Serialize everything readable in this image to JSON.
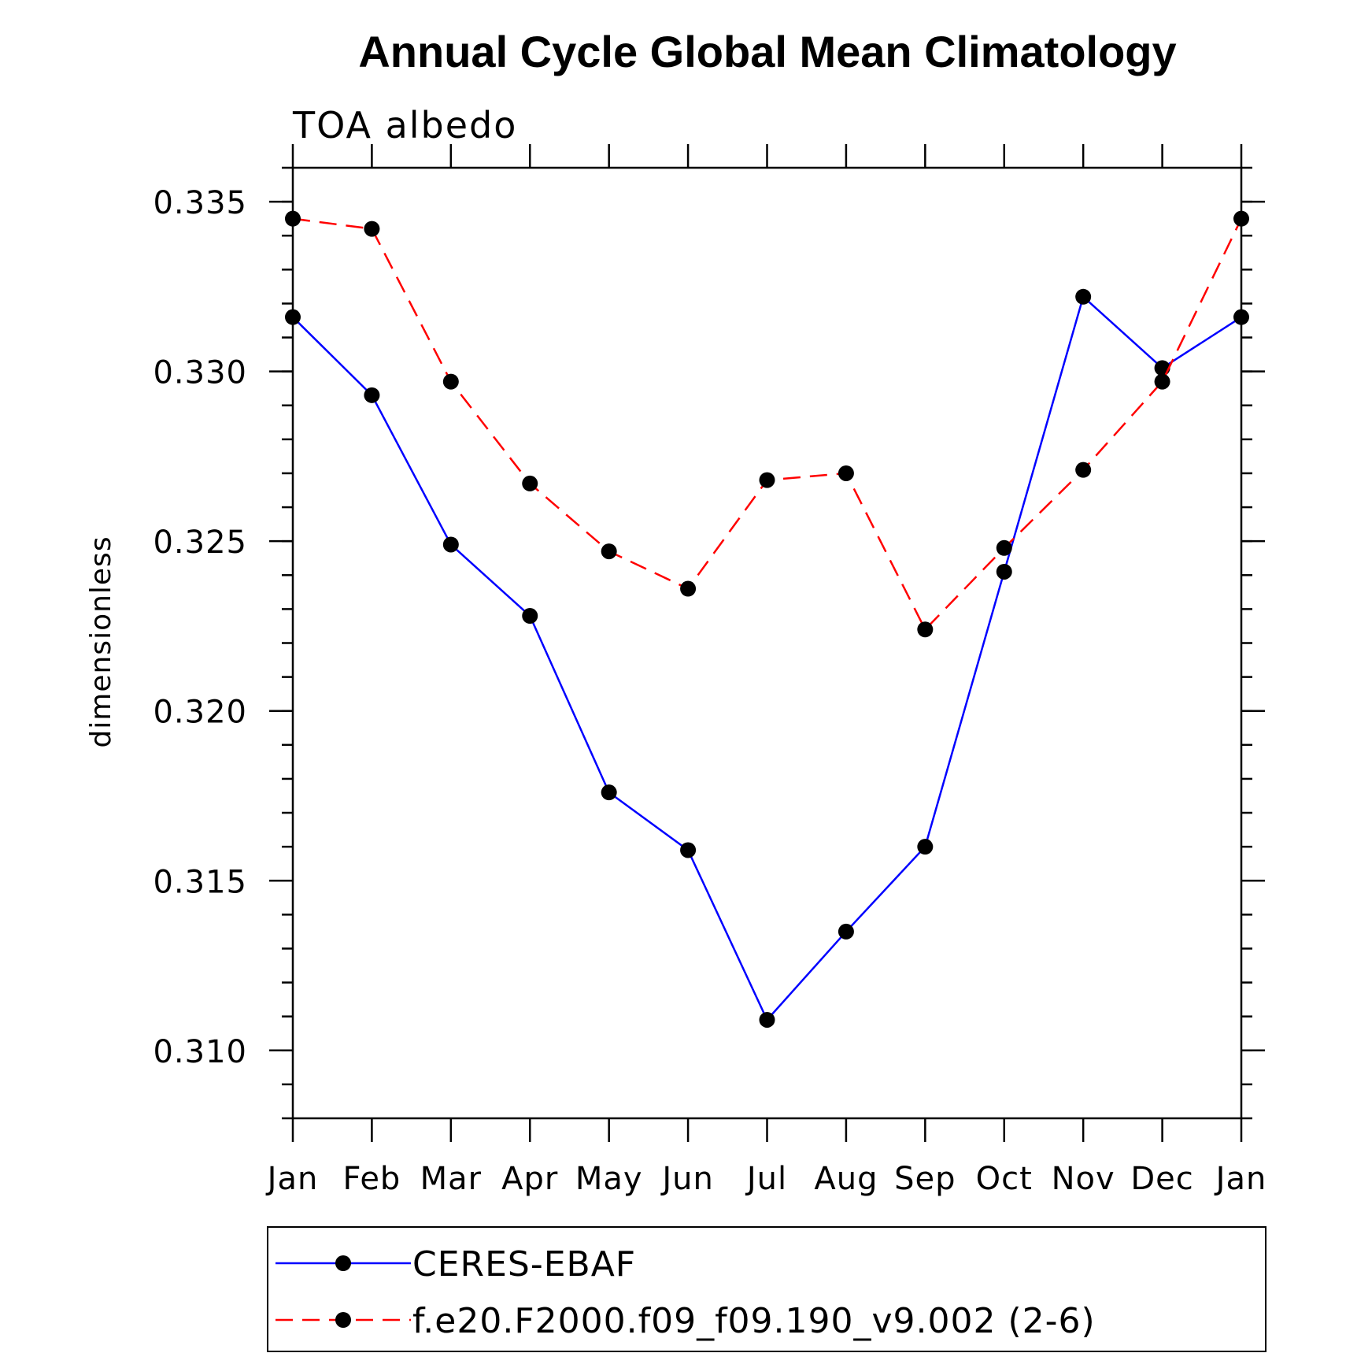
{
  "chart_data": {
    "type": "line",
    "title": "Annual Cycle Global Mean Climatology",
    "subtitle": "TOA albedo",
    "xlabel": "",
    "ylabel": "dimensionless",
    "categories": [
      "Jan",
      "Feb",
      "Mar",
      "Apr",
      "May",
      "Jun",
      "Jul",
      "Aug",
      "Sep",
      "Oct",
      "Nov",
      "Dec",
      "Jan"
    ],
    "ylim": [
      0.308,
      0.336
    ],
    "yticks": [
      "0.310",
      "0.315",
      "0.320",
      "0.325",
      "0.330",
      "0.335"
    ],
    "ytick_values": [
      0.31,
      0.315,
      0.32,
      0.325,
      0.33,
      0.335
    ],
    "y_minor_step": 0.001,
    "grid": false,
    "legend_position": "bottom",
    "series": [
      {
        "name": "CERES-EBAF",
        "color": "#0000ff",
        "line_style": "solid",
        "marker": "filled-circle",
        "marker_color": "#000000",
        "values": [
          0.3316,
          0.3293,
          0.3249,
          0.3228,
          0.3176,
          0.3159,
          0.3109,
          0.3135,
          0.316,
          0.3241,
          0.3322,
          0.3301,
          0.3316
        ]
      },
      {
        "name": "f.e20.F2000.f09_f09.190_v9.002 (2-6)",
        "color": "#ff0000",
        "line_style": "dashed",
        "marker": "filled-circle",
        "marker_color": "#000000",
        "values": [
          0.3345,
          0.3342,
          0.3297,
          0.3267,
          0.3247,
          0.3236,
          0.3268,
          0.327,
          0.3224,
          0.3248,
          0.3271,
          0.3297,
          0.3345
        ]
      }
    ]
  }
}
